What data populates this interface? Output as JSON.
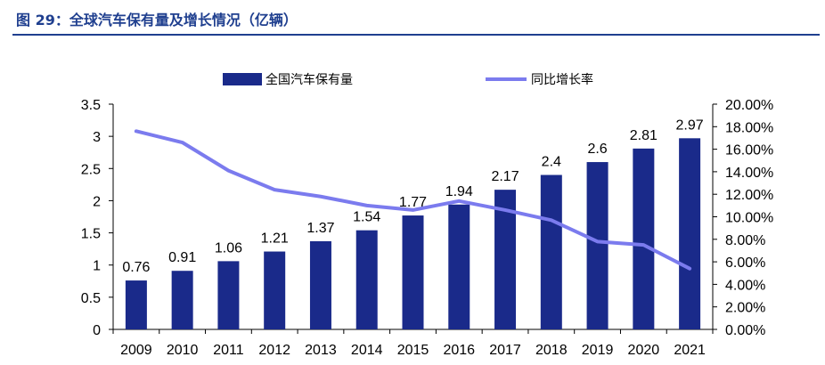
{
  "figure": {
    "title": "图 29：全球汽车保有量及增长情况（亿辆）"
  },
  "chart_data": {
    "type": "bar+line",
    "categories": [
      "2009",
      "2010",
      "2011",
      "2012",
      "2013",
      "2014",
      "2015",
      "2016",
      "2017",
      "2018",
      "2019",
      "2020",
      "2021"
    ],
    "series": [
      {
        "name": "全国汽车保有量",
        "kind": "bar",
        "axis": "left",
        "values": [
          0.76,
          0.91,
          1.06,
          1.21,
          1.37,
          1.54,
          1.77,
          1.94,
          2.17,
          2.4,
          2.6,
          2.81,
          2.97
        ],
        "labels": [
          "0.76",
          "0.91",
          "1.06",
          "1.21",
          "1.37",
          "1.54",
          "1.77",
          "1.94",
          "2.17",
          "2.4",
          "2.6",
          "2.81",
          "2.97"
        ],
        "color": "#1a2a8a"
      },
      {
        "name": "同比增长率",
        "kind": "line",
        "axis": "right",
        "values": [
          17.6,
          16.6,
          14.1,
          12.4,
          11.8,
          11.0,
          10.6,
          11.4,
          10.6,
          9.7,
          7.8,
          7.5,
          5.4
        ],
        "color": "#7b7bee"
      }
    ],
    "y_left": {
      "ylim": [
        0,
        3.5
      ],
      "ticks": [
        "0",
        "0.5",
        "1",
        "1.5",
        "2",
        "2.5",
        "3",
        "3.5"
      ]
    },
    "y_right": {
      "ylim": [
        0,
        20
      ],
      "ticks": [
        "0.00%",
        "2.00%",
        "4.00%",
        "6.00%",
        "8.00%",
        "10.00%",
        "12.00%",
        "14.00%",
        "16.00%",
        "18.00%",
        "20.00%"
      ]
    },
    "legend": "top-center",
    "grid": false
  }
}
